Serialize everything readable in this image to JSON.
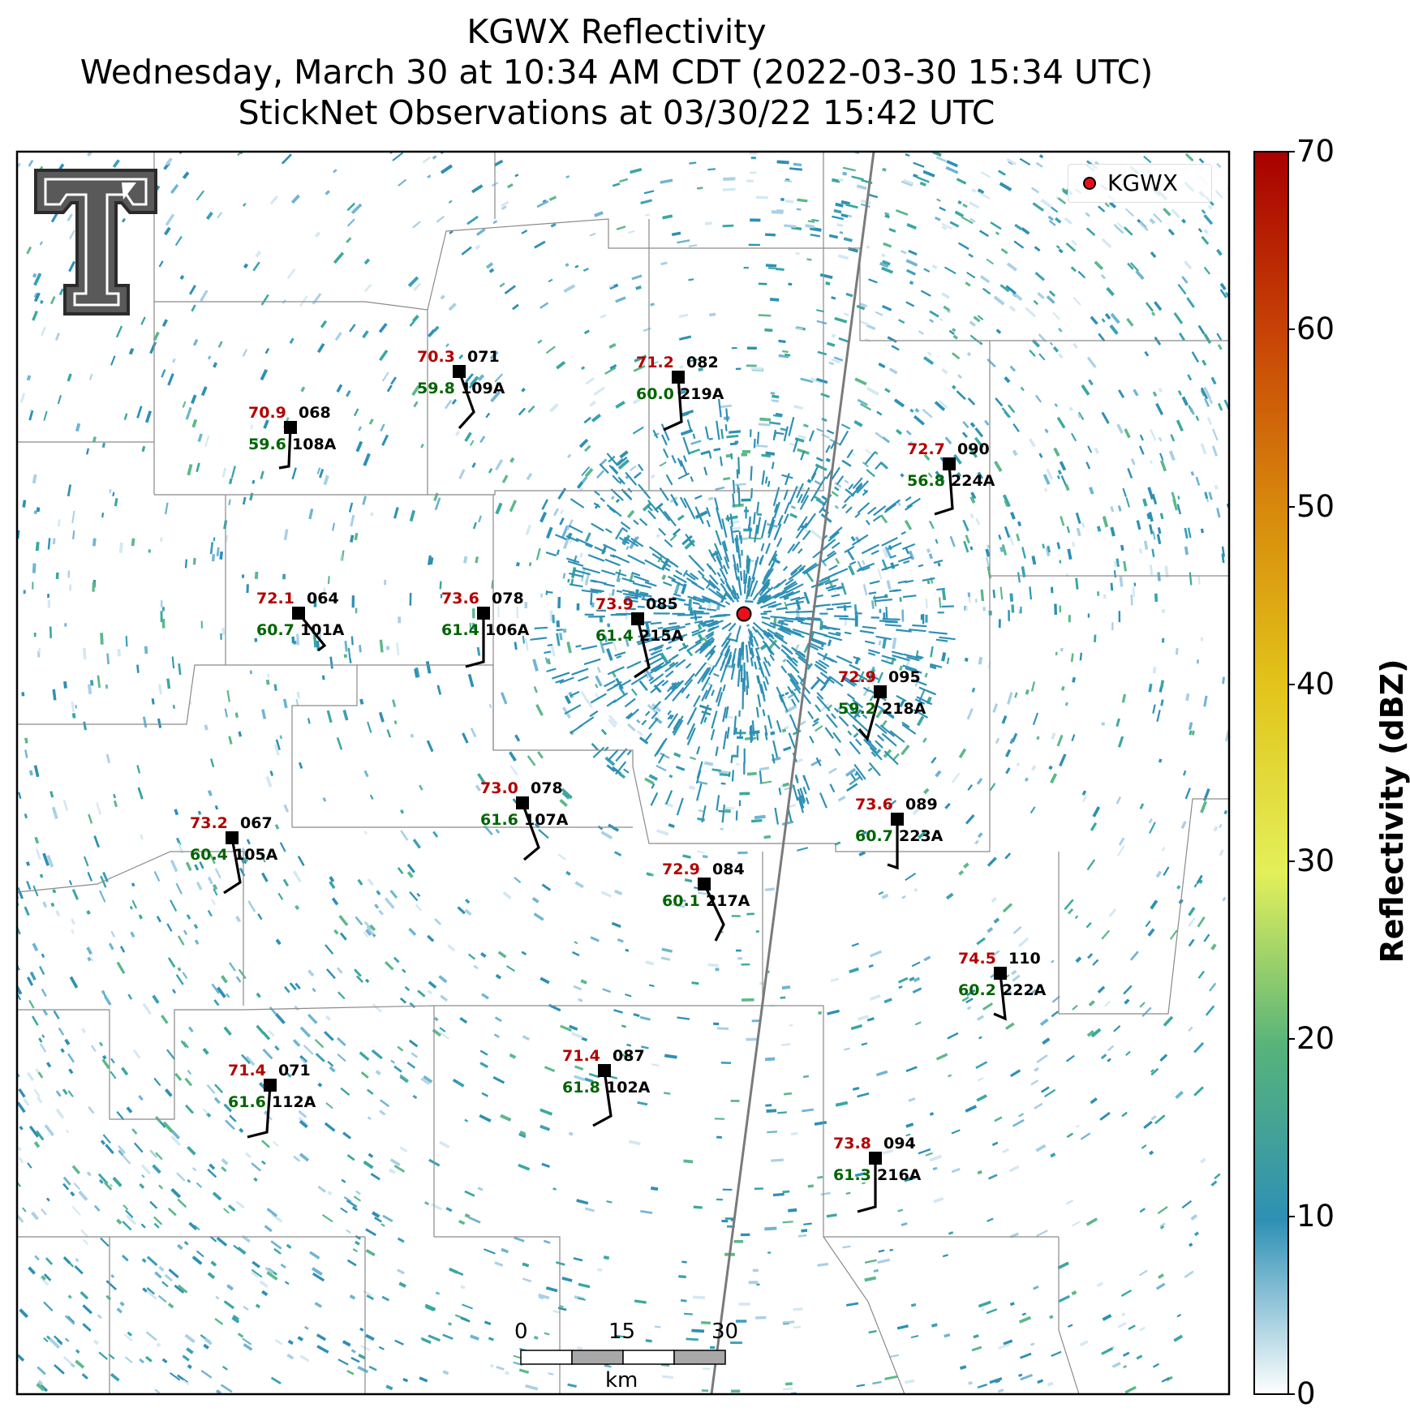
{
  "title": {
    "line1": "KGWX Reflectivity",
    "line2": "Wednesday, March 30 at 10:34 AM CDT (2022-03-30 15:34 UTC)",
    "line3": "StickNet Observations at 03/30/22 15:42 UTC"
  },
  "legend": {
    "label": "KGWX"
  },
  "colorbar": {
    "label": "Reflectivity (dBZ)",
    "ticks": [
      "0",
      "10",
      "20",
      "30",
      "40",
      "50",
      "60",
      "70"
    ],
    "colors": [
      "#ffffff",
      "#2e90b5",
      "#57b37a",
      "#b7e06c",
      "#e2d12a",
      "#d8a20f",
      "#c85a06",
      "#a80000"
    ]
  },
  "scale_bar": {
    "ticks": [
      "0",
      "15",
      "30"
    ],
    "unit": "km"
  },
  "stations": [
    {
      "id": "109A",
      "temp": "70.3",
      "dew": "59.8",
      "wind": "071"
    },
    {
      "id": "219A",
      "temp": "71.2",
      "dew": "60.0",
      "wind": "082"
    },
    {
      "id": "108A",
      "temp": "70.9",
      "dew": "59.6",
      "wind": "068"
    },
    {
      "id": "224A",
      "temp": "72.7",
      "dew": "56.8",
      "wind": "090"
    },
    {
      "id": "101A",
      "temp": "72.1",
      "dew": "60.7",
      "wind": "064"
    },
    {
      "id": "106A",
      "temp": "73.6",
      "dew": "61.4",
      "wind": "078"
    },
    {
      "id": "215A",
      "temp": "73.9",
      "dew": "61.4",
      "wind": "085"
    },
    {
      "id": "218A",
      "temp": "72.9",
      "dew": "59.2",
      "wind": "095"
    },
    {
      "id": "107A",
      "temp": "73.0",
      "dew": "61.6",
      "wind": "078"
    },
    {
      "id": "223A",
      "temp": "73.6",
      "dew": "60.7",
      "wind": "089"
    },
    {
      "id": "105A",
      "temp": "73.2",
      "dew": "60.4",
      "wind": "067"
    },
    {
      "id": "217A",
      "temp": "72.9",
      "dew": "60.1",
      "wind": "084"
    },
    {
      "id": "222A",
      "temp": "74.5",
      "dew": "60.2",
      "wind": "110"
    },
    {
      "id": "112A",
      "temp": "71.4",
      "dew": "61.6",
      "wind": "071"
    },
    {
      "id": "102A",
      "temp": "71.4",
      "dew": "61.8",
      "wind": "087"
    },
    {
      "id": "216A",
      "temp": "73.8",
      "dew": "61.3",
      "wind": "094"
    }
  ]
}
